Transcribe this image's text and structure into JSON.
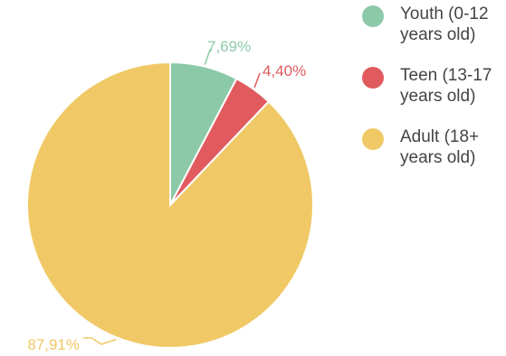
{
  "chart_data": {
    "type": "pie",
    "categories": [
      "Youth (0-12\nyears old)",
      "Teen (13-17\nyears old)",
      "Adult (18+\nyears old)"
    ],
    "values": [
      7.69,
      4.4,
      87.91
    ],
    "labels": [
      "7,69%",
      "4,40%",
      "87,91%"
    ],
    "colors": [
      "#8cc9a9",
      "#e05a5e",
      "#f0c966"
    ],
    "legend_position": "right",
    "start_angle": "12 o'clock",
    "direction": "clockwise"
  }
}
